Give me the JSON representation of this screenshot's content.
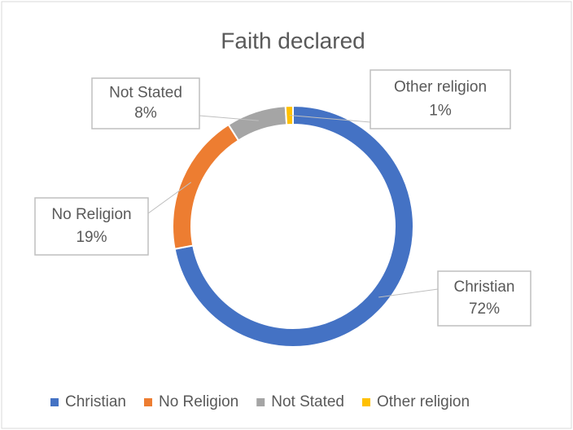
{
  "chart_data": {
    "type": "doughnut",
    "title": "Faith declared",
    "categories": [
      "Christian",
      "No Religion",
      "Not Stated",
      "Other religion"
    ],
    "values": [
      72,
      19,
      8,
      1
    ],
    "value_labels": [
      "72%",
      "19%",
      "8%",
      "1%"
    ],
    "colors": [
      "#4472c4",
      "#ed7d31",
      "#a5a5a5",
      "#ffc000"
    ],
    "legend": "bottom"
  }
}
